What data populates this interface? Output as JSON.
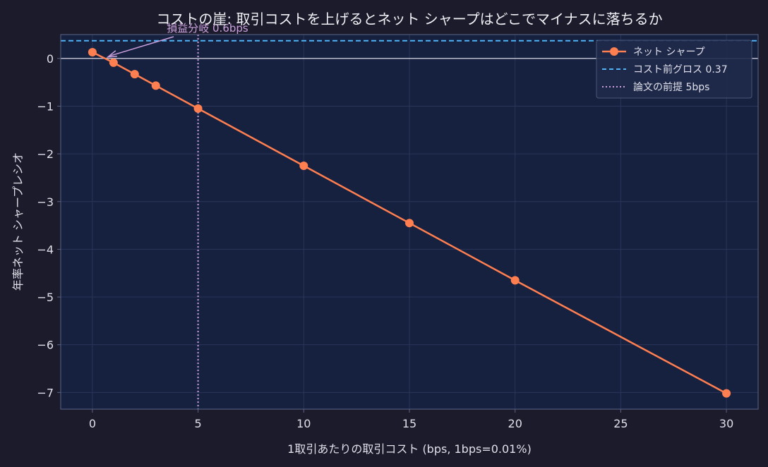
{
  "chart_data": {
    "type": "line",
    "title": "コストの崖: 取引コストを上げるとネット シャープはどこでマイナスに落ちるか",
    "xlabel": "1取引あたりの取引コスト (bps, 1bps=0.01%)",
    "ylabel": "年率ネット シャープレシオ",
    "xlim": [
      -1.5,
      31.5
    ],
    "ylim": [
      -7.35,
      0.5
    ],
    "xticks": [
      0,
      5,
      10,
      15,
      20,
      25,
      30
    ],
    "xtick_labels": [
      "0",
      "5",
      "10",
      "15",
      "20",
      "25",
      "30"
    ],
    "yticks": [
      0,
      -1,
      -2,
      -3,
      -4,
      -5,
      -6,
      -7
    ],
    "ytick_labels": [
      "0",
      "−1",
      "−2",
      "−3",
      "−4",
      "−5",
      "−6",
      "−7"
    ],
    "grid": true,
    "legend_position": "top-right",
    "series": [
      {
        "name": "ネット シャープ",
        "color": "#ff7f50",
        "x": [
          0,
          1,
          2,
          3,
          5,
          10,
          15,
          20,
          30
        ],
        "y": [
          0.13,
          -0.09,
          -0.33,
          -0.57,
          -1.05,
          -2.25,
          -3.45,
          -4.65,
          -7.02
        ]
      }
    ],
    "reference_lines": [
      {
        "name": "コスト前グロス 0.37",
        "orientation": "horizontal",
        "value": 0.37,
        "style": "dashed",
        "color": "#4fb3f5"
      },
      {
        "name": "論文の前提 5bps",
        "orientation": "vertical",
        "value": 5,
        "style": "dotted",
        "color": "#c9a0dc"
      },
      {
        "name": "",
        "orientation": "horizontal",
        "value": 0,
        "style": "solid",
        "color": "#c8c8d8"
      }
    ],
    "annotations": [
      {
        "text": "損益分岐 0.6bps",
        "point_x": 0.6,
        "point_y": 0,
        "color": "#c9a0dc"
      }
    ],
    "colors": {
      "figure_bg": "#1c1b2b",
      "plot_bg": "#16203f",
      "grid": "#2a3558",
      "axis": "#5a6385",
      "text": "#e0e0ea"
    }
  }
}
